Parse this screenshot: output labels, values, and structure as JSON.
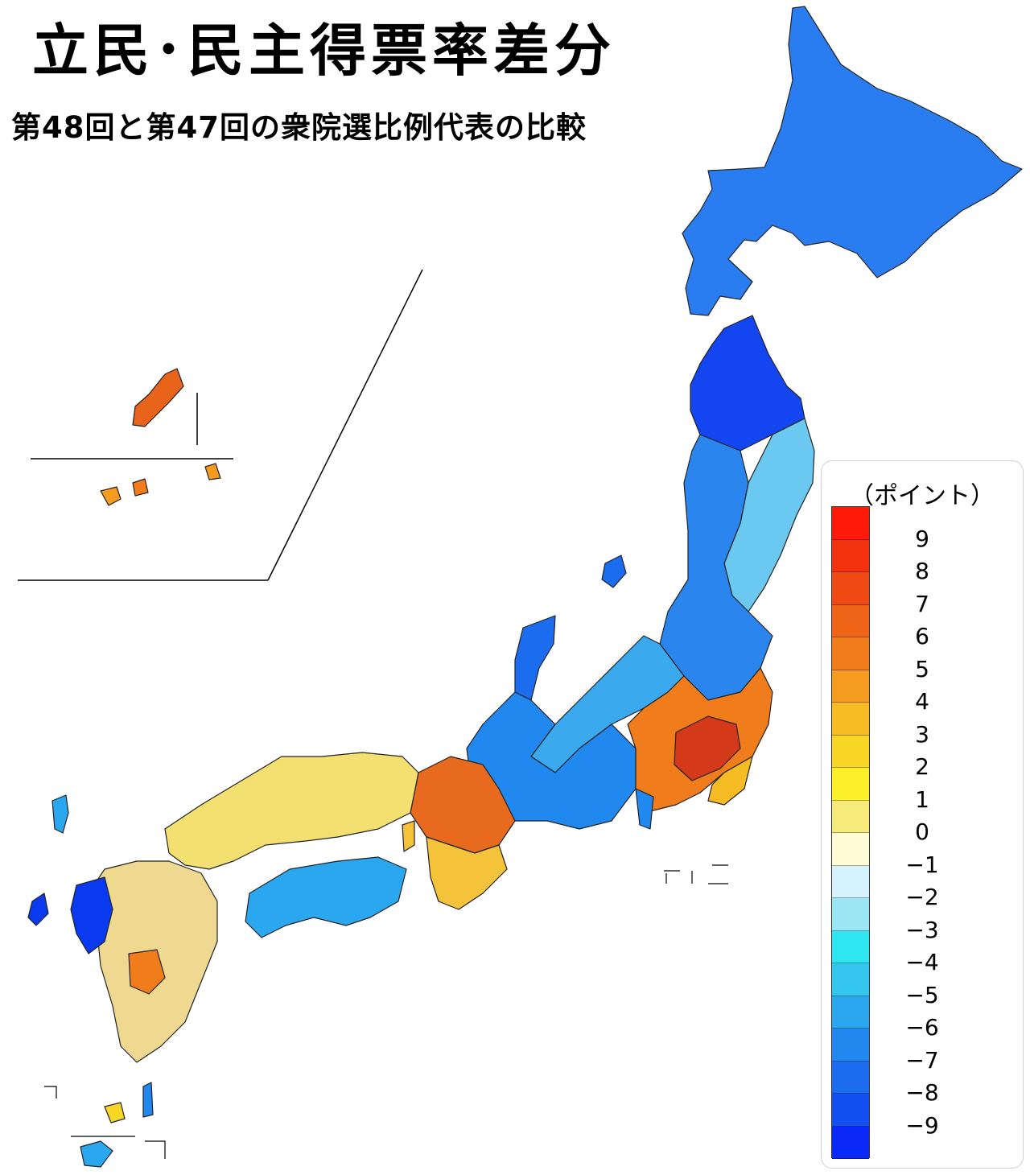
{
  "header": {
    "title": "立民･民主得票率差分",
    "subtitle": "第48回と第47回の衆院選比例代表の比較"
  },
  "legend": {
    "unit": "（ポイント）",
    "labels": [
      "9",
      "8",
      "7",
      "6",
      "5",
      "4",
      "3",
      "2",
      "1",
      "0",
      "−1",
      "−2",
      "−3",
      "−4",
      "−5",
      "−6",
      "−7",
      "−8",
      "−9"
    ],
    "colors": [
      "#ff1a0a",
      "#f2320f",
      "#ef4a14",
      "#f06418",
      "#f07c1c",
      "#f59b1f",
      "#f7bb24",
      "#f8d727",
      "#fbf02a",
      "#f6ea7a",
      "#fffcd6",
      "#d6f2ff",
      "#9be6f5",
      "#2ee6f0",
      "#35c6ef",
      "#2aa7ee",
      "#2288ef",
      "#1c6cf0",
      "#144ff2",
      "#0a28f8"
    ]
  },
  "regions": {
    "hokkaido": "#2a7df0",
    "tohoku_north": "#1346f0",
    "tohoku_pacific": "#6bc8f0",
    "tohoku_west": "#2a86ee",
    "sado": "#1c6cf0",
    "niigata": "#3aa9ee",
    "kanto": "#f07c1c",
    "kanto_core": "#d43a1a",
    "chiba": "#f7bb24",
    "chubu": "#2088ee",
    "hokuriku": "#f8d727",
    "kansai": "#e86a1f",
    "kii": "#f5c33a",
    "chugoku": "#f4e070",
    "shikoku": "#2aa7ee",
    "kyushu": "#efd890",
    "kyushu_west": "#0a3af0",
    "kumamoto": "#f07c1c",
    "okinawa": "#e8641a",
    "yaeyama": "#f59b1f"
  }
}
